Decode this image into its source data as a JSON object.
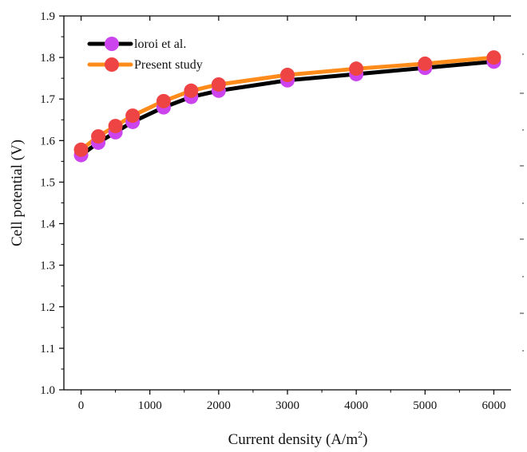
{
  "chart_data": {
    "type": "line",
    "xlabel": "Current density (A/m",
    "xlabel_sup": "2",
    "xlabel_end": ")",
    "ylabel": "Cell potential (V)",
    "xlim": [
      -250,
      6250
    ],
    "ylim": [
      1.0,
      1.9
    ],
    "x_ticks": [
      0,
      1000,
      2000,
      3000,
      4000,
      5000,
      6000
    ],
    "y_ticks": [
      1.0,
      1.1,
      1.2,
      1.3,
      1.4,
      1.5,
      1.6,
      1.7,
      1.8,
      1.9
    ],
    "x_tick_labels": [
      "0",
      "1000",
      "2000",
      "3000",
      "4000",
      "5000",
      "6000"
    ],
    "y_tick_labels": [
      "1.0",
      "1.1",
      "1.2",
      "1.3",
      "1.4",
      "1.5",
      "1.6",
      "1.7",
      "1.8",
      "1.9"
    ],
    "legend_position": "top-left",
    "series": [
      {
        "name": "loroi et al.",
        "line_color": "#000000",
        "marker_color": "#cc44ee",
        "x": [
          0,
          250,
          500,
          750,
          1200,
          1600,
          2000,
          3000,
          4000,
          5000,
          6000
        ],
        "y": [
          1.565,
          1.595,
          1.62,
          1.645,
          1.68,
          1.705,
          1.72,
          1.745,
          1.76,
          1.775,
          1.79
        ]
      },
      {
        "name": "Present study",
        "line_color": "#ff8c1a",
        "marker_color": "#ee4444",
        "x": [
          0,
          250,
          500,
          750,
          1200,
          1600,
          2000,
          3000,
          4000,
          5000,
          6000
        ],
        "y": [
          1.578,
          1.61,
          1.635,
          1.66,
          1.695,
          1.72,
          1.735,
          1.758,
          1.773,
          1.785,
          1.8
        ]
      }
    ]
  }
}
